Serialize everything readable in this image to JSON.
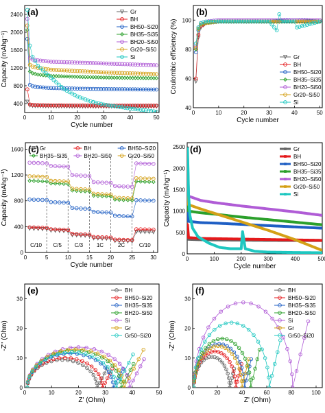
{
  "chart_data": [
    {
      "panel": "(a)",
      "type": "scatter",
      "xlabel": "Cycle number",
      "ylabel": "Capacity (mAhg⁻¹)",
      "xlim": [
        0,
        51
      ],
      "ylim": [
        200,
        2600
      ],
      "xticks": [
        0,
        10,
        20,
        30,
        40,
        50
      ],
      "yticks": [
        400,
        800,
        1200,
        1600,
        2000,
        2400
      ],
      "legend_position": "top-right",
      "series": [
        {
          "name": "Gr",
          "color": "#666666",
          "marker": "triangle-down",
          "x": [
            1,
            2,
            3,
            5,
            10,
            20,
            30,
            40,
            50
          ],
          "y": [
            440,
            360,
            350,
            345,
            340,
            335,
            335,
            335,
            335
          ]
        },
        {
          "name": "BH",
          "color": "#e41a1c",
          "marker": "circle",
          "x": [
            1,
            2,
            3,
            5,
            10,
            20,
            30,
            40,
            50
          ],
          "y": [
            720,
            380,
            370,
            365,
            360,
            358,
            355,
            355,
            355
          ]
        },
        {
          "name": "BH50–Si20",
          "color": "#1f5fc4",
          "marker": "circle",
          "x": [
            1,
            2,
            3,
            5,
            10,
            20,
            30,
            40,
            50
          ],
          "y": [
            1850,
            820,
            790,
            770,
            750,
            735,
            725,
            720,
            715
          ]
        },
        {
          "name": "BH35–Si35",
          "color": "#2ca02c",
          "marker": "diamond",
          "x": [
            1,
            2,
            3,
            5,
            10,
            20,
            30,
            40,
            50
          ],
          "y": [
            2050,
            1120,
            1080,
            1050,
            1020,
            1000,
            985,
            975,
            970
          ]
        },
        {
          "name": "BH20–Si50",
          "color": "#b05cd6",
          "marker": "circle",
          "x": [
            1,
            2,
            3,
            5,
            10,
            20,
            30,
            40,
            50
          ],
          "y": [
            2300,
            1420,
            1390,
            1370,
            1340,
            1320,
            1300,
            1280,
            1260
          ]
        },
        {
          "name": "Gr20–Si50",
          "color": "#d4a017",
          "marker": "circle",
          "x": [
            1,
            2,
            3,
            5,
            10,
            20,
            30,
            40,
            50
          ],
          "y": [
            2150,
            1270,
            1230,
            1200,
            1160,
            1130,
            1100,
            1080,
            1060
          ]
        },
        {
          "name": "Si",
          "color": "#1ec7c0",
          "marker": "circle",
          "x": [
            1,
            2,
            3,
            5,
            10,
            15,
            20,
            25,
            30,
            40,
            50
          ],
          "y": [
            2500,
            1700,
            1450,
            1250,
            980,
            720,
            560,
            450,
            380,
            290,
            220
          ]
        }
      ]
    },
    {
      "panel": "(b)",
      "type": "scatter",
      "xlabel": "Cycle number",
      "ylabel": "Coulombic efficiency (%)",
      "xlim": [
        0,
        51
      ],
      "ylim": [
        40,
        110
      ],
      "xticks": [
        0,
        10,
        20,
        30,
        40,
        50
      ],
      "yticks": [
        40,
        60,
        80,
        100
      ],
      "legend_position": "bottom-right",
      "series": [
        {
          "name": "Gr",
          "color": "#666666",
          "marker": "triangle-down",
          "x": [
            1,
            2,
            3,
            5,
            10,
            20,
            30,
            40,
            50
          ],
          "y": [
            58,
            88,
            95,
            98,
            99,
            99,
            99,
            99,
            99
          ]
        },
        {
          "name": "BH",
          "color": "#e41a1c",
          "marker": "circle",
          "x": [
            1,
            2,
            3,
            5,
            10,
            20,
            30,
            40,
            50
          ],
          "y": [
            60,
            90,
            96,
            98,
            99,
            99,
            99,
            99,
            99
          ]
        },
        {
          "name": "BH50–Si20",
          "color": "#1f5fc4",
          "marker": "circle",
          "x": [
            1,
            2,
            3,
            5,
            10,
            20,
            30,
            40,
            50
          ],
          "y": [
            78,
            93,
            97,
            98,
            99,
            99,
            99,
            100,
            99
          ]
        },
        {
          "name": "BH35–Si35",
          "color": "#2ca02c",
          "marker": "diamond",
          "x": [
            1,
            2,
            3,
            5,
            10,
            20,
            30,
            40,
            50
          ],
          "y": [
            80,
            94,
            97,
            98,
            99,
            99,
            99,
            99,
            99
          ]
        },
        {
          "name": "BH20–Si50",
          "color": "#b05cd6",
          "marker": "circle",
          "x": [
            1,
            2,
            3,
            5,
            10,
            20,
            30,
            40,
            50
          ],
          "y": [
            82,
            95,
            98,
            99,
            100,
            100,
            100,
            100,
            100
          ]
        },
        {
          "name": "Gr20–Si50",
          "color": "#d4a017",
          "marker": "circle",
          "x": [
            1,
            2,
            3,
            5,
            10,
            20,
            30,
            40,
            50
          ],
          "y": [
            81,
            94,
            97,
            98,
            99,
            99,
            99,
            99,
            99
          ]
        },
        {
          "name": "Si",
          "color": "#1ec7c0",
          "marker": "circle",
          "x": [
            1,
            2,
            3,
            5,
            10,
            20,
            30,
            33,
            34,
            35,
            40,
            41,
            50
          ],
          "y": [
            84,
            95,
            98,
            99,
            99,
            99,
            99,
            93,
            104,
            99,
            99,
            95,
            99
          ]
        }
      ]
    },
    {
      "panel": "(c)",
      "type": "scatter",
      "xlabel": "Cycle number",
      "ylabel": "Capacity (mAhg⁻¹)",
      "xlim": [
        0,
        31
      ],
      "ylim": [
        0,
        1700
      ],
      "xticks": [
        0,
        5,
        10,
        15,
        20,
        25,
        30
      ],
      "yticks": [
        0,
        400,
        800,
        1200,
        1600
      ],
      "legend_position": "top",
      "rate_labels": [
        "C/10",
        "C/5",
        "C/3",
        "1C",
        "2C",
        "C/10"
      ],
      "segment_boundaries": [
        5,
        10,
        15,
        20,
        25
      ],
      "series": [
        {
          "name": "Gr",
          "color": "#666666",
          "marker": "triangle-down",
          "x": [
            1,
            3,
            5,
            6,
            8,
            10,
            11,
            13,
            15,
            16,
            18,
            20,
            21,
            23,
            25,
            26,
            28,
            30
          ],
          "y": [
            370,
            365,
            362,
            340,
            335,
            330,
            270,
            262,
            258,
            220,
            215,
            212,
            180,
            175,
            172,
            320,
            318,
            315
          ]
        },
        {
          "name": "BH",
          "color": "#e41a1c",
          "marker": "circle",
          "x": [
            1,
            3,
            5,
            6,
            8,
            10,
            11,
            13,
            15,
            16,
            18,
            20,
            21,
            23,
            25,
            26,
            28,
            30
          ],
          "y": [
            390,
            385,
            382,
            360,
            355,
            350,
            290,
            282,
            278,
            240,
            235,
            232,
            200,
            195,
            192,
            360,
            357,
            355
          ]
        },
        {
          "name": "BH50–Si20",
          "color": "#1f5fc4",
          "marker": "circle",
          "x": [
            1,
            3,
            5,
            6,
            8,
            10,
            11,
            13,
            15,
            16,
            18,
            20,
            21,
            23,
            25,
            26,
            28,
            30
          ],
          "y": [
            820,
            815,
            812,
            780,
            775,
            770,
            690,
            680,
            675,
            630,
            622,
            618,
            570,
            562,
            558,
            810,
            805,
            802
          ]
        },
        {
          "name": "BH35–Si35",
          "color": "#2ca02c",
          "marker": "diamond",
          "x": [
            1,
            3,
            5,
            6,
            8,
            10,
            11,
            13,
            15,
            16,
            18,
            20,
            21,
            23,
            25,
            26,
            28,
            30
          ],
          "y": [
            1110,
            1105,
            1100,
            1070,
            1065,
            1060,
            960,
            950,
            945,
            880,
            872,
            868,
            820,
            812,
            808,
            1100,
            1095,
            1092
          ]
        },
        {
          "name": "BH20–Si50",
          "color": "#b05cd6",
          "marker": "circle",
          "x": [
            1,
            3,
            5,
            6,
            8,
            10,
            11,
            13,
            15,
            16,
            18,
            20,
            21,
            23,
            25,
            26,
            28,
            30
          ],
          "y": [
            1390,
            1385,
            1380,
            1340,
            1335,
            1330,
            1200,
            1190,
            1185,
            1090,
            1082,
            1078,
            1030,
            1022,
            1018,
            1380,
            1375,
            1372
          ]
        },
        {
          "name": "Gr20–Si50",
          "color": "#d4a017",
          "marker": "circle",
          "x": [
            1,
            3,
            5,
            6,
            8,
            10,
            11,
            13,
            15,
            16,
            18,
            20,
            21,
            23,
            25,
            26,
            28,
            30
          ],
          "y": [
            1180,
            1175,
            1170,
            1110,
            1105,
            1100,
            990,
            980,
            975,
            910,
            902,
            898,
            850,
            842,
            838,
            1150,
            1145,
            1142
          ]
        }
      ]
    },
    {
      "panel": "(d)",
      "type": "scatter",
      "xlabel": "Cycle number",
      "ylabel": "Capacity (mAhg⁻¹)",
      "xlim": [
        0,
        500
      ],
      "ylim": [
        0,
        2600
      ],
      "xticks": [
        0,
        100,
        200,
        300,
        400,
        500
      ],
      "yticks": [
        0,
        500,
        1000,
        1500,
        2000,
        2500
      ],
      "legend_position": "top-right",
      "series": [
        {
          "name": "Gr",
          "color": "#666666",
          "marker": "square",
          "x": [
            1,
            5,
            50,
            100,
            200,
            300,
            400,
            500
          ],
          "y": [
            420,
            340,
            330,
            325,
            320,
            315,
            312,
            310
          ]
        },
        {
          "name": "BH",
          "color": "#e41a1c",
          "marker": "square",
          "x": [
            1,
            5,
            50,
            100,
            200,
            300,
            400,
            500
          ],
          "y": [
            700,
            380,
            360,
            355,
            345,
            335,
            325,
            315
          ]
        },
        {
          "name": "BH50–Si20",
          "color": "#1f5fc4",
          "marker": "square",
          "x": [
            1,
            5,
            50,
            100,
            200,
            300,
            400,
            500
          ],
          "y": [
            1800,
            760,
            730,
            720,
            690,
            660,
            630,
            600
          ]
        },
        {
          "name": "BH35–Si35",
          "color": "#2ca02c",
          "marker": "square",
          "x": [
            1,
            5,
            50,
            100,
            200,
            300,
            400,
            500
          ],
          "y": [
            2050,
            1000,
            960,
            930,
            860,
            800,
            740,
            680
          ]
        },
        {
          "name": "BH20–Si50",
          "color": "#b05cd6",
          "marker": "square",
          "x": [
            1,
            5,
            50,
            100,
            200,
            300,
            400,
            500
          ],
          "y": [
            2350,
            1350,
            1250,
            1200,
            1120,
            1050,
            980,
            900
          ]
        },
        {
          "name": "Gr20–Si50",
          "color": "#d4a017",
          "marker": "square",
          "x": [
            1,
            5,
            50,
            100,
            200,
            300,
            400,
            500
          ],
          "y": [
            2150,
            1150,
            1050,
            950,
            750,
            550,
            330,
            80
          ]
        },
        {
          "name": "Si",
          "color": "#1ec7c0",
          "marker": "square",
          "x": [
            1,
            3,
            5,
            10,
            20,
            40,
            80,
            120,
            160,
            200,
            205,
            215,
            250,
            300,
            400,
            500
          ],
          "y": [
            2480,
            2000,
            1400,
            900,
            600,
            400,
            250,
            150,
            120,
            120,
            520,
            120,
            60,
            40,
            30,
            25
          ]
        }
      ]
    },
    {
      "panel": "(e)",
      "type": "line",
      "xlabel": "Z' (Ohm)",
      "ylabel": "-Z'' (Ohm)",
      "xlim": [
        0,
        50
      ],
      "ylim": [
        0,
        35
      ],
      "xticks": [
        0,
        10,
        20,
        30,
        40,
        50
      ],
      "yticks": [
        0,
        10,
        20,
        30
      ],
      "legend_position": "top-right",
      "series": [
        {
          "name": "BH",
          "color": "#666666",
          "r0": 1,
          "r1": 27,
          "tail": 4
        },
        {
          "name": "BH50–Si20",
          "color": "#e41a1c",
          "r0": 1,
          "r1": 29,
          "tail": 4
        },
        {
          "name": "BH35–Si35",
          "color": "#1f5fc4",
          "r0": 1,
          "r1": 33,
          "tail": 4
        },
        {
          "name": "BH20–Si50",
          "color": "#2ca02c",
          "r0": 1,
          "r1": 36,
          "tail": 5
        },
        {
          "name": "Si",
          "color": "#b05cd6",
          "r0": 1,
          "r1": 39,
          "tail": 6
        },
        {
          "name": "Gr",
          "color": "#d4a017",
          "r0": 1,
          "r1": 37,
          "tail": 8
        },
        {
          "name": "Gr50–Si20",
          "color": "#1ec7c0",
          "r0": 1,
          "r1": 34,
          "tail": 7
        }
      ]
    },
    {
      "panel": "(f)",
      "type": "line",
      "xlabel": "Z' (Ohm)",
      "ylabel": "-Z'' (Ohm)",
      "xlim": [
        0,
        105
      ],
      "ylim": [
        0,
        35
      ],
      "xticks": [
        0,
        20,
        40,
        60,
        80,
        100
      ],
      "yticks": [
        0,
        10,
        20,
        30
      ],
      "legend_position": "top-right",
      "series": [
        {
          "name": "BH",
          "color": "#666666",
          "r0": 1,
          "r1": 30,
          "tail": 4
        },
        {
          "name": "BH50–Si20",
          "color": "#e41a1c",
          "r0": 1,
          "r1": 35,
          "tail": 5
        },
        {
          "name": "BH35–Si35",
          "color": "#1f5fc4",
          "r0": 1,
          "r1": 42,
          "tail": 6
        },
        {
          "name": "BH20–Si50",
          "color": "#2ca02c",
          "r0": 1,
          "r1": 47,
          "tail": 8
        },
        {
          "name": "Si",
          "color": "#b05cd6",
          "r0": 1,
          "r1": 81,
          "tail": 14
        },
        {
          "name": "Gr",
          "color": "#d4a017",
          "r0": 1,
          "r1": 40,
          "tail": 6
        },
        {
          "name": "Gr50–Si20",
          "color": "#1ec7c0",
          "r0": 1,
          "r1": 62,
          "tail": 10
        }
      ]
    }
  ]
}
